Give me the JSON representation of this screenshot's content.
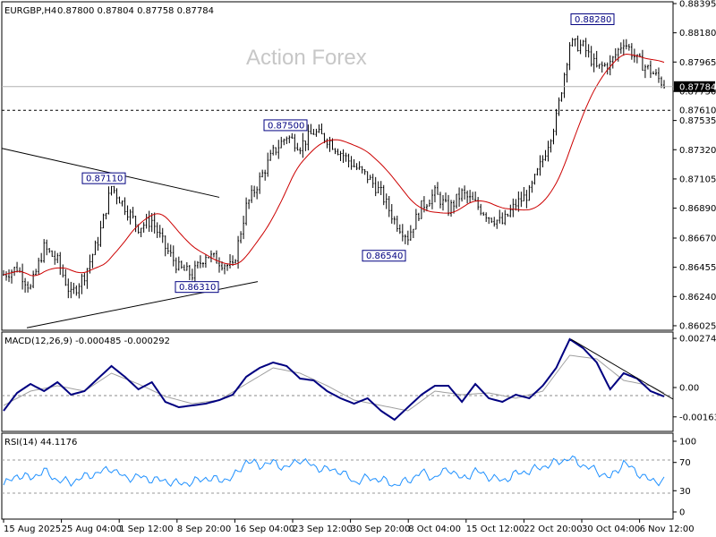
{
  "chart_data": [
    {
      "type": "candlestick",
      "title": "EURGBP,H4",
      "ohlc": "0.87800 0.87804 0.87758 0.87784",
      "watermark": "Action Forex",
      "ylim": [
        0.86005,
        0.88395
      ],
      "y_ticks": [
        "0.88395",
        "0.88180",
        "0.87965",
        "0.87750",
        "0.87535",
        "0.87320",
        "0.87105",
        "0.86890",
        "0.86670",
        "0.86455",
        "0.86240",
        "0.86025"
      ],
      "x_ticks": [
        "15 Aug 2025",
        "25 Aug 04:00",
        "1 Sep 12:00",
        "8 Sep 20:00",
        "16 Sep 04:00",
        "23 Sep 12:00",
        "30 Sep 20:00",
        "8 Oct 04:00",
        "15 Oct 12:00",
        "22 Oct 20:00",
        "30 Oct 04:00",
        "6 Nov 12:00"
      ],
      "annotations": [
        {
          "label": "0.87110",
          "value": 0.8711
        },
        {
          "label": "0.86310",
          "value": 0.8631
        },
        {
          "label": "0.87500",
          "value": 0.875
        },
        {
          "label": "0.86540",
          "value": 0.8654
        },
        {
          "label": "0.88280",
          "value": 0.8828
        }
      ],
      "current_price": "0.87784",
      "level_line": "0.87610",
      "close_path": [
        [
          0,
          0.864
        ],
        [
          5,
          0.8645
        ],
        [
          10,
          0.863
        ],
        [
          15,
          0.866
        ],
        [
          20,
          0.865
        ],
        [
          25,
          0.8625
        ],
        [
          30,
          0.864
        ],
        [
          35,
          0.8665
        ],
        [
          40,
          0.8705
        ],
        [
          45,
          0.869
        ],
        [
          50,
          0.8675
        ],
        [
          55,
          0.868
        ],
        [
          60,
          0.866
        ],
        [
          65,
          0.8645
        ],
        [
          70,
          0.864
        ],
        [
          75,
          0.8655
        ],
        [
          80,
          0.865
        ],
        [
          85,
          0.8645
        ],
        [
          90,
          0.869
        ],
        [
          95,
          0.871
        ],
        [
          100,
          0.873
        ],
        [
          105,
          0.8742
        ],
        [
          110,
          0.8735
        ],
        [
          115,
          0.8745
        ],
        [
          120,
          0.874
        ],
        [
          125,
          0.873
        ],
        [
          130,
          0.872
        ],
        [
          135,
          0.8712
        ],
        [
          140,
          0.87
        ],
        [
          145,
          0.868
        ],
        [
          150,
          0.8668
        ],
        [
          155,
          0.869
        ],
        [
          160,
          0.87
        ],
        [
          165,
          0.8688
        ],
        [
          170,
          0.87
        ],
        [
          175,
          0.8692
        ],
        [
          180,
          0.8683
        ],
        [
          185,
          0.8678
        ],
        [
          190,
          0.8692
        ],
        [
          195,
          0.87
        ],
        [
          200,
          0.8725
        ],
        [
          205,
          0.8755
        ],
        [
          210,
          0.881
        ],
        [
          215,
          0.8808
        ],
        [
          220,
          0.8792
        ],
        [
          225,
          0.8795
        ],
        [
          230,
          0.8812
        ],
        [
          235,
          0.8798
        ],
        [
          240,
          0.879
        ],
        [
          245,
          0.878
        ]
      ],
      "series": [
        {
          "name": "",
          "color": "#cc0000",
          "role": "moving-average"
        }
      ]
    },
    {
      "type": "line",
      "title": "MACD(12,26,9) -0.000485 -0.000292",
      "ylim": [
        -0.0024,
        0.003
      ],
      "y_ticks": [
        "0.002747",
        "0.00",
        "-0.001639"
      ],
      "macd": [
        [
          0,
          -0.0013
        ],
        [
          5,
          -0.0003
        ],
        [
          10,
          0.0002
        ],
        [
          15,
          -0.0002
        ],
        [
          20,
          0.0003
        ],
        [
          25,
          -0.0004
        ],
        [
          30,
          -0.0002
        ],
        [
          35,
          0.0005
        ],
        [
          40,
          0.0012
        ],
        [
          45,
          0.0006
        ],
        [
          50,
          -0.0001
        ],
        [
          55,
          0.0003
        ],
        [
          60,
          -0.0008
        ],
        [
          65,
          -0.0011
        ],
        [
          70,
          -0.001
        ],
        [
          75,
          -0.0009
        ],
        [
          80,
          -0.0007
        ],
        [
          85,
          -0.0004
        ],
        [
          90,
          0.0006
        ],
        [
          95,
          0.0011
        ],
        [
          100,
          0.0014
        ],
        [
          105,
          0.0012
        ],
        [
          110,
          0.0005
        ],
        [
          115,
          0.0004
        ],
        [
          120,
          -0.0002
        ],
        [
          125,
          -0.0006
        ],
        [
          130,
          -0.0009
        ],
        [
          135,
          -0.0006
        ],
        [
          140,
          -0.0013
        ],
        [
          145,
          -0.0018
        ],
        [
          150,
          -0.0011
        ],
        [
          155,
          -0.0004
        ],
        [
          160,
          0.0001
        ],
        [
          165,
          0.0001
        ],
        [
          170,
          -0.0008
        ],
        [
          175,
          0.0002
        ],
        [
          180,
          -0.0006
        ],
        [
          185,
          -0.0008
        ],
        [
          190,
          -0.0004
        ],
        [
          195,
          -0.0006
        ],
        [
          200,
          0.0001
        ],
        [
          205,
          0.0011
        ],
        [
          210,
          0.0027
        ],
        [
          215,
          0.0022
        ],
        [
          220,
          0.0014
        ],
        [
          225,
          -0.0001
        ],
        [
          230,
          0.0008
        ],
        [
          235,
          0.0005
        ],
        [
          240,
          -0.0002
        ],
        [
          245,
          -0.0005
        ]
      ],
      "signal": [
        [
          0,
          -0.001
        ],
        [
          10,
          -0.0002
        ],
        [
          20,
          0.0001
        ],
        [
          30,
          -0.0002
        ],
        [
          40,
          0.0008
        ],
        [
          50,
          0.0002
        ],
        [
          60,
          -0.0005
        ],
        [
          70,
          -0.0009
        ],
        [
          80,
          -0.0007
        ],
        [
          90,
          0.0002
        ],
        [
          100,
          0.0011
        ],
        [
          110,
          0.0008
        ],
        [
          120,
          0.0001
        ],
        [
          130,
          -0.0007
        ],
        [
          140,
          -0.001
        ],
        [
          150,
          -0.0013
        ],
        [
          160,
          -0.0002
        ],
        [
          170,
          -0.0004
        ],
        [
          180,
          -0.0003
        ],
        [
          190,
          -0.0006
        ],
        [
          200,
          -0.0002
        ],
        [
          210,
          0.0018
        ],
        [
          220,
          0.0016
        ],
        [
          230,
          0.0004
        ],
        [
          240,
          0.0001
        ],
        [
          245,
          -0.0003
        ]
      ],
      "macd_color": "#000080",
      "signal_color": "#a0a0a0"
    },
    {
      "type": "line",
      "title": "RSI(14) 44.1176",
      "ylim": [
        0,
        100
      ],
      "y_ticks": [
        "100",
        "70",
        "30",
        "0"
      ],
      "values": [
        [
          0,
          38
        ],
        [
          5,
          52
        ],
        [
          10,
          48
        ],
        [
          15,
          58
        ],
        [
          20,
          45
        ],
        [
          25,
          42
        ],
        [
          30,
          50
        ],
        [
          35,
          55
        ],
        [
          40,
          62
        ],
        [
          45,
          48
        ],
        [
          50,
          50
        ],
        [
          55,
          46
        ],
        [
          60,
          44
        ],
        [
          65,
          40
        ],
        [
          70,
          42
        ],
        [
          75,
          48
        ],
        [
          80,
          45
        ],
        [
          85,
          48
        ],
        [
          90,
          72
        ],
        [
          95,
          66
        ],
        [
          100,
          70
        ],
        [
          105,
          62
        ],
        [
          110,
          75
        ],
        [
          115,
          64
        ],
        [
          120,
          60
        ],
        [
          125,
          58
        ],
        [
          130,
          42
        ],
        [
          135,
          48
        ],
        [
          140,
          46
        ],
        [
          145,
          38
        ],
        [
          150,
          44
        ],
        [
          155,
          56
        ],
        [
          160,
          48
        ],
        [
          165,
          62
        ],
        [
          170,
          46
        ],
        [
          175,
          58
        ],
        [
          180,
          50
        ],
        [
          185,
          44
        ],
        [
          190,
          54
        ],
        [
          195,
          58
        ],
        [
          200,
          64
        ],
        [
          205,
          70
        ],
        [
          210,
          76
        ],
        [
          215,
          66
        ],
        [
          220,
          58
        ],
        [
          225,
          48
        ],
        [
          230,
          70
        ],
        [
          235,
          56
        ],
        [
          240,
          44
        ],
        [
          245,
          44
        ]
      ],
      "color": "#1e90ff"
    }
  ]
}
